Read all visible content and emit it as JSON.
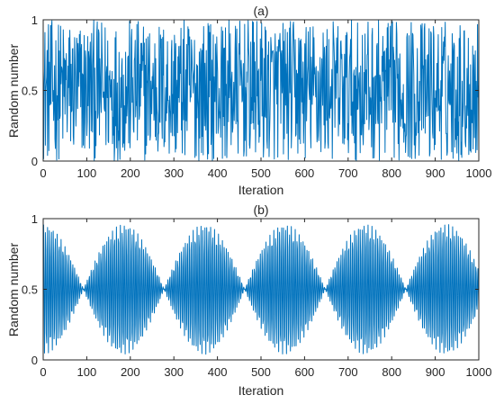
{
  "chart_data": [
    {
      "type": "line",
      "title": "(a)",
      "xlabel": "Iteration",
      "ylabel": "Random number",
      "xlim": [
        0,
        1000
      ],
      "ylim": [
        0,
        1
      ],
      "xticks": [
        0,
        100,
        200,
        300,
        400,
        500,
        600,
        700,
        800,
        900,
        1000
      ],
      "yticks": [
        0,
        0.5,
        1
      ],
      "grid": false,
      "series": [
        {
          "generator": "random",
          "n_points": 1000,
          "value_range": [
            0.0,
            1.0
          ],
          "color": "#0072BD"
        }
      ]
    },
    {
      "type": "line",
      "title": "(b)",
      "xlabel": "Iteration",
      "ylabel": "Random number",
      "xlim": [
        0,
        1000
      ],
      "ylim": [
        0,
        1
      ],
      "xticks": [
        0,
        100,
        200,
        300,
        400,
        500,
        600,
        700,
        800,
        900,
        1000
      ],
      "yticks": [
        0,
        0.5,
        1
      ],
      "grid": false,
      "series": [
        {
          "generator": "periodic",
          "n_points": 1000,
          "value_range": [
            0.02,
            0.98
          ],
          "color": "#0072BD"
        }
      ]
    }
  ]
}
